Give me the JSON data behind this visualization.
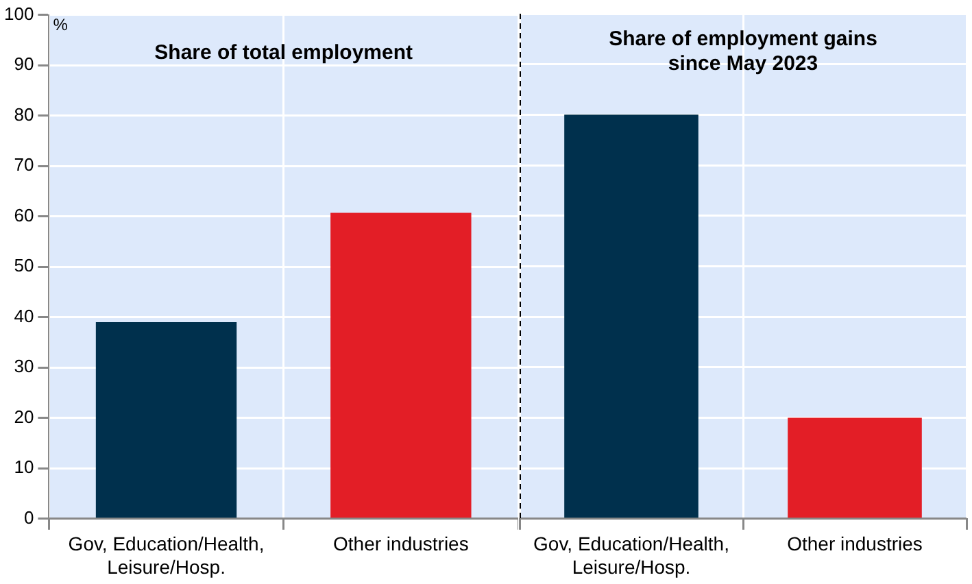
{
  "chart_data": [
    {
      "type": "bar",
      "title": "Share of total employment",
      "ylabel": "%",
      "categories": [
        "Gov, Education/Health, Leisure/Hosp.",
        "Other industries"
      ],
      "values": [
        39,
        60.7
      ],
      "colors": [
        "#00304d",
        "#e31e26"
      ],
      "ylim": [
        0,
        100
      ],
      "yticks": [
        0,
        10,
        20,
        30,
        40,
        50,
        60,
        70,
        80,
        90,
        100
      ],
      "grid": true
    },
    {
      "type": "bar",
      "title": "Share of employment gains since May 2023",
      "categories": [
        "Gov, Education/Health, Leisure/Hosp.",
        "Other industries"
      ],
      "values": [
        80,
        20
      ],
      "colors": [
        "#00304d",
        "#e31e26"
      ],
      "ylim": [
        0,
        100
      ],
      "yticks": [
        0,
        10,
        20,
        30,
        40,
        50,
        60,
        70,
        80,
        90,
        100
      ],
      "grid": true,
      "tick_labels": "x"
    }
  ]
}
